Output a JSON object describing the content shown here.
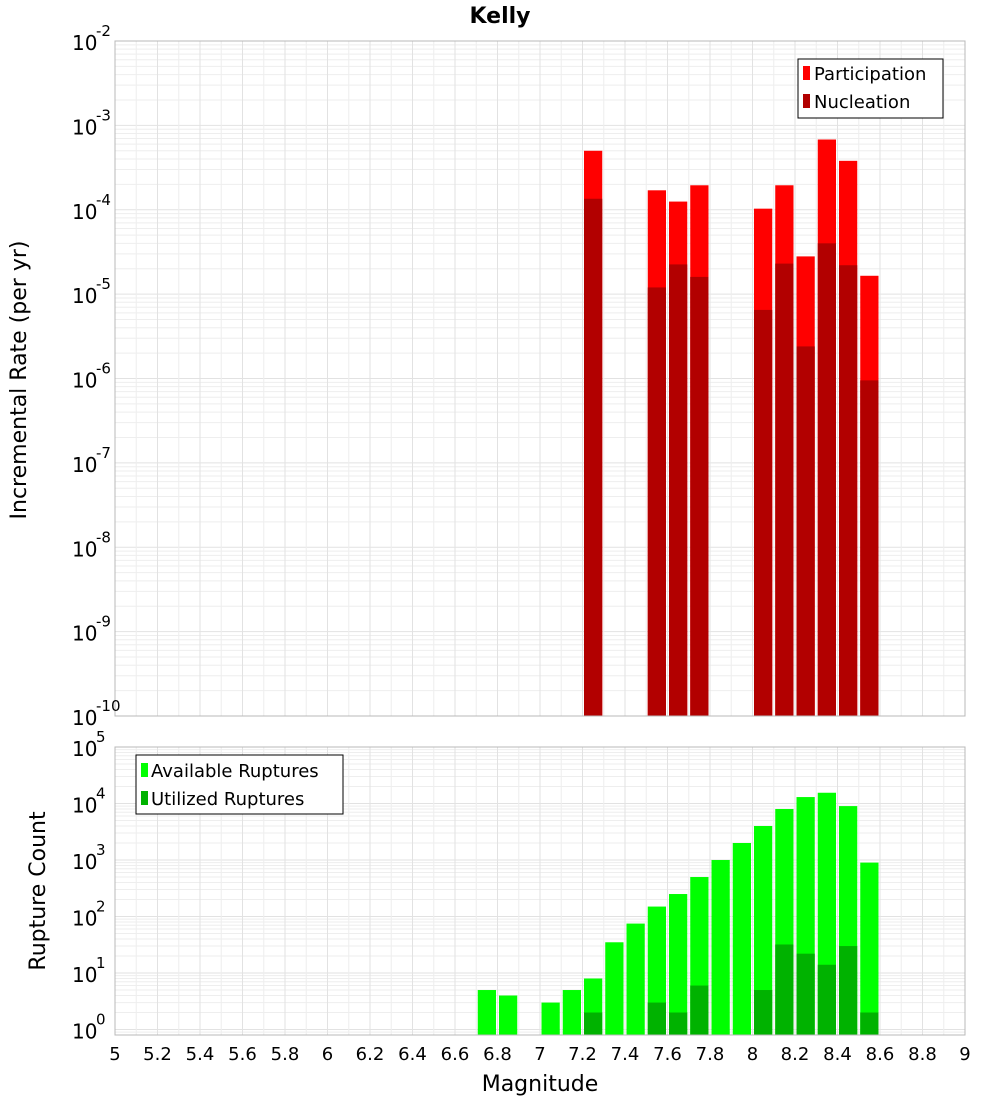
{
  "chart_data": {
    "title": "Kelly",
    "xlabel": "Magnitude",
    "x_ticks": [
      "5",
      "5.2",
      "5.4",
      "5.6",
      "5.8",
      "6",
      "6.2",
      "6.4",
      "6.6",
      "6.8",
      "7",
      "7.2",
      "7.4",
      "7.6",
      "7.8",
      "8",
      "8.2",
      "8.4",
      "8.6",
      "8.8",
      "9"
    ],
    "xlim": [
      5,
      9
    ],
    "bin_width": 0.1,
    "panels": [
      {
        "type": "bar",
        "scale": "log",
        "ylabel": "Incremental Rate (per yr)",
        "ylim": [
          1e-10,
          0.01
        ],
        "y_tick_exponents": [
          "-10",
          "-9",
          "-8",
          "-7",
          "-6",
          "-5",
          "-4",
          "-3",
          "-2"
        ],
        "grid": true,
        "legend_position": "top-right",
        "series": [
          {
            "name": "Participation",
            "color": "#ff0000",
            "x": [
              7.25,
              7.55,
              7.65,
              7.75,
              8.05,
              8.15,
              8.25,
              8.35,
              8.45,
              8.55
            ],
            "values": [
              0.0005,
              0.00017,
              0.000125,
              0.000195,
              0.000103,
              0.000195,
              2.8e-05,
              0.00068,
              0.00038,
              1.65e-05
            ]
          },
          {
            "name": "Nucleation",
            "color": "#b20000",
            "x": [
              7.25,
              7.55,
              7.65,
              7.75,
              8.05,
              8.15,
              8.25,
              8.35,
              8.45,
              8.55
            ],
            "values": [
              0.000135,
              1.2e-05,
              2.25e-05,
              1.6e-05,
              6.5e-06,
              2.3e-05,
              2.4e-06,
              4e-05,
              2.2e-05,
              9.5e-07
            ]
          }
        ]
      },
      {
        "type": "bar",
        "scale": "log",
        "ylabel": "Rupture Count",
        "ylim": [
          0.8,
          100000.0
        ],
        "y_tick_exponents": [
          "0",
          "1",
          "2",
          "3",
          "4",
          "5"
        ],
        "grid": true,
        "legend_position": "top-left",
        "series": [
          {
            "name": "Available Ruptures",
            "color": "#00ff00",
            "x": [
              6.75,
              6.85,
              7.05,
              7.15,
              7.25,
              7.35,
              7.45,
              7.55,
              7.65,
              7.75,
              7.85,
              7.95,
              8.05,
              8.15,
              8.25,
              8.35,
              8.45,
              8.55
            ],
            "values": [
              5,
              4,
              3,
              5,
              8,
              35,
              75,
              150,
              250,
              500,
              1000,
              2000,
              4000,
              8000,
              13000,
              15500,
              9000,
              900
            ]
          },
          {
            "name": "Utilized Ruptures",
            "color": "#00b200",
            "x": [
              7.25,
              7.55,
              7.65,
              7.75,
              8.05,
              8.15,
              8.25,
              8.35,
              8.45,
              8.55
            ],
            "values": [
              2,
              3,
              2,
              6,
              5,
              32,
              22,
              14,
              30,
              2
            ]
          }
        ]
      }
    ]
  }
}
